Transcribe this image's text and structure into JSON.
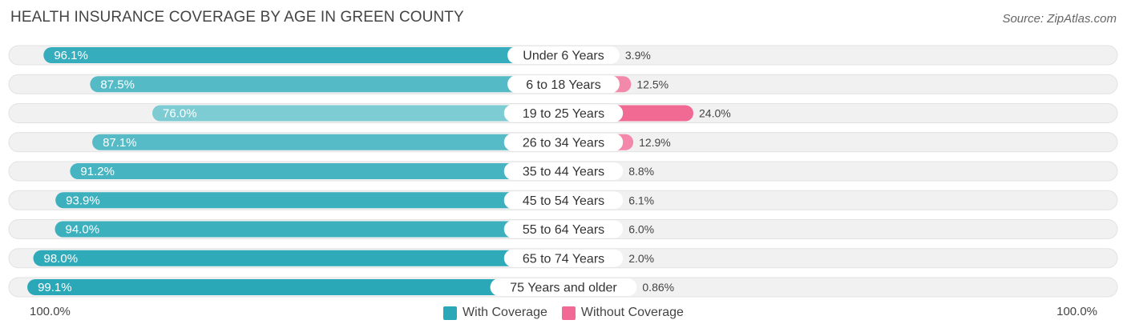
{
  "header": {
    "title": "HEALTH INSURANCE COVERAGE BY AGE IN GREEN COUNTY",
    "source": "Source: ZipAtlas.com"
  },
  "colors": {
    "with_coverage_dark": "#2BA8B8",
    "with_coverage_light": "#7DCCD4",
    "without_coverage_dark": "#F06A93",
    "without_coverage_light": "#F7A9C2",
    "row_background": "#F1F1F1",
    "row_border": "#E2E2E2"
  },
  "legend": {
    "with_label": "With Coverage",
    "without_label": "Without Coverage"
  },
  "axis": {
    "left_label": "100.0%",
    "right_label": "100.0%"
  },
  "chart_data": {
    "type": "bar",
    "title": "HEALTH INSURANCE COVERAGE BY AGE IN GREEN COUNTY",
    "categories": [
      "Under 6 Years",
      "6 to 18 Years",
      "19 to 25 Years",
      "26 to 34 Years",
      "35 to 44 Years",
      "45 to 54 Years",
      "55 to 64 Years",
      "65 to 74 Years",
      "75 Years and older"
    ],
    "series": [
      {
        "name": "With Coverage",
        "values": [
          96.1,
          87.5,
          76.0,
          87.1,
          91.2,
          93.9,
          94.0,
          98.0,
          99.1
        ],
        "labels": [
          "96.1%",
          "87.5%",
          "76.0%",
          "87.1%",
          "91.2%",
          "93.9%",
          "94.0%",
          "98.0%",
          "99.1%"
        ]
      },
      {
        "name": "Without Coverage",
        "values": [
          3.9,
          12.5,
          24.0,
          12.9,
          8.8,
          6.1,
          6.0,
          2.0,
          0.86
        ],
        "labels": [
          "3.9%",
          "12.5%",
          "24.0%",
          "12.9%",
          "8.8%",
          "6.1%",
          "6.0%",
          "2.0%",
          "0.86%"
        ]
      }
    ],
    "xlim": [
      -100,
      100
    ],
    "legend_position": "bottom-center"
  }
}
